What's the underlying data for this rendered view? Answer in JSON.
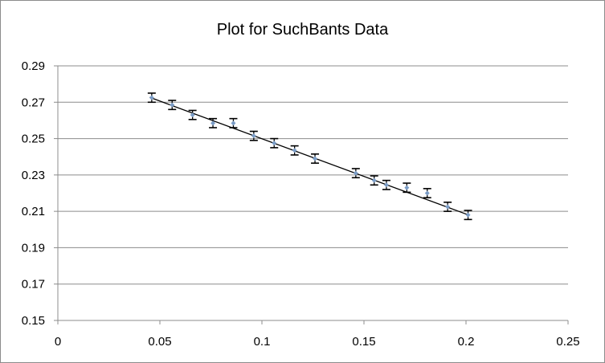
{
  "chart_data": {
    "type": "scatter",
    "title": "Plot for SuchBants Data",
    "xlabel": "",
    "ylabel": "",
    "xlim": [
      0,
      0.25
    ],
    "ylim": [
      0.15,
      0.29
    ],
    "x_ticks": [
      "0",
      "0.05",
      "0.1",
      "0.15",
      "0.2",
      "0.25"
    ],
    "y_ticks": [
      "0.15",
      "0.17",
      "0.19",
      "0.21",
      "0.23",
      "0.25",
      "0.27",
      "0.29"
    ],
    "x_tick_values": [
      0,
      0.05,
      0.1,
      0.15,
      0.2,
      0.25
    ],
    "y_tick_values": [
      0.15,
      0.17,
      0.19,
      0.21,
      0.23,
      0.25,
      0.27,
      0.29
    ],
    "grid": "horizontal",
    "legend": "none",
    "series": [
      {
        "marker_color": "#7a9cc6",
        "x": [
          0.046,
          0.056,
          0.066,
          0.076,
          0.086,
          0.096,
          0.106,
          0.116,
          0.126,
          0.146,
          0.155,
          0.161,
          0.171,
          0.181,
          0.191,
          0.201
        ],
        "y": [
          0.2725,
          0.2685,
          0.263,
          0.2585,
          0.2585,
          0.2515,
          0.2475,
          0.2435,
          0.239,
          0.231,
          0.227,
          0.2245,
          0.223,
          0.22,
          0.2125,
          0.208
        ],
        "error": 0.0025
      }
    ],
    "trendline": {
      "type": "linear",
      "x": [
        0.045,
        0.201
      ],
      "y": [
        0.2727,
        0.2081
      ],
      "color": "#000000"
    },
    "colors": {
      "gridline": "#8c8c8c",
      "errorbar": "#000000",
      "frame": "#8c8c8c"
    }
  }
}
